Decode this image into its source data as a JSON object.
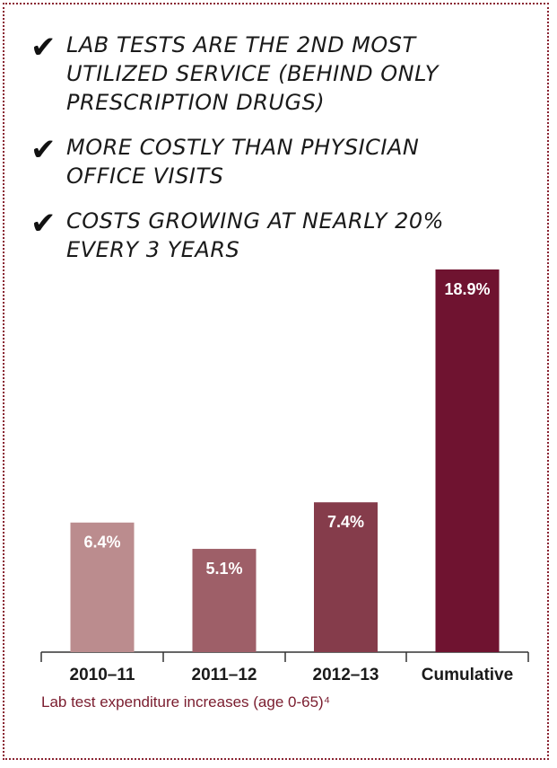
{
  "bullets": [
    "Lab tests are the 2nd most utilized service (behind only prescription drugs)",
    "More costly than physician office visits",
    "Costs growing at nearly 20% every 3 years"
  ],
  "check_glyph": "✔",
  "chart_data": {
    "type": "bar",
    "categories": [
      "2010–11",
      "2011–12",
      "2012–13",
      "Cumulative"
    ],
    "values": [
      6.4,
      5.1,
      7.4,
      18.9
    ],
    "data_labels": [
      "6.4%",
      "5.1%",
      "7.4%",
      "18.9%"
    ],
    "colors": [
      "#bb8c8e",
      "#9e5f68",
      "#853c4b",
      "#6f1330"
    ],
    "ylim": [
      0,
      18.9
    ],
    "grid": false,
    "title": "",
    "xlabel": "",
    "ylabel": "",
    "caption": "Lab test expenditure increases (age 0-65)⁴"
  },
  "colors": {
    "frame": "#8a2432",
    "caption": "#7a1c2e",
    "axis": "#333333"
  }
}
